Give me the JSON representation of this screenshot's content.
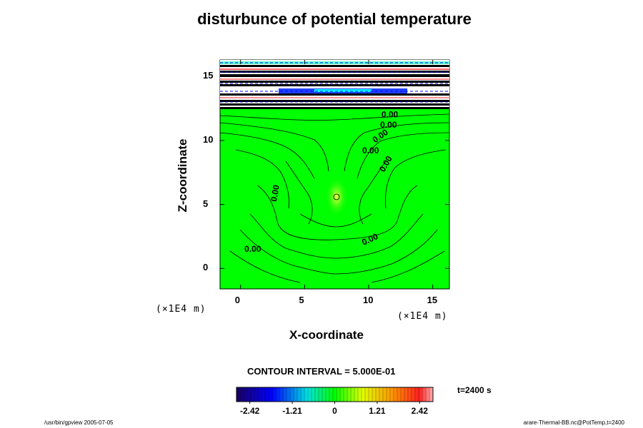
{
  "title": "disturbunce of potential temperature",
  "chart_data": {
    "type": "heatmap",
    "title": "disturbunce of potential temperature",
    "xlabel": "X-coordinate",
    "ylabel": "Z-coordinate",
    "x_unit": "(×1E4 m)",
    "y_unit": "(×1E4 m)",
    "xlim": [
      -1.6,
      16.3
    ],
    "ylim": [
      -1.6,
      16.3
    ],
    "x_ticks": [
      0,
      5,
      10,
      15
    ],
    "y_ticks": [
      0,
      5,
      10,
      15
    ],
    "x_tick_labels": [
      "0",
      "5",
      "10",
      "15"
    ],
    "y_tick_labels": [
      "0",
      "5",
      "10",
      "15"
    ],
    "contour_interval": 0.5,
    "contour_labels": [
      {
        "text": "0.00",
        "x": 0.3,
        "z": 1.3,
        "angle": 0
      },
      {
        "text": "0.00",
        "x": 2.8,
        "z": 5.2,
        "angle": -80
      },
      {
        "text": "0.00",
        "x": 9.5,
        "z": 9.0,
        "angle": 0
      },
      {
        "text": "0.00",
        "x": 10.5,
        "z": 9.8,
        "angle": -35
      },
      {
        "text": "0.00",
        "x": 11.2,
        "z": 7.5,
        "angle": -60
      },
      {
        "text": "0.00",
        "x": 10.9,
        "z": 11.0,
        "angle": 0
      },
      {
        "text": "0.00",
        "x": 11.0,
        "z": 11.8,
        "angle": 0
      },
      {
        "text": "0.00",
        "x": 9.6,
        "z": 1.8,
        "angle": -25
      }
    ],
    "colorbar": {
      "min": -2.8,
      "max": 2.8,
      "ticks": [
        -2.42,
        -1.21,
        0,
        1.21,
        2.42
      ],
      "tick_labels": [
        "-2.42",
        "-1.21",
        "0",
        "1.21",
        "2.42"
      ]
    }
  },
  "contour_interval_label": "CONTOUR INTERVAL = 5.000E-01",
  "time_label": "t=2400 s",
  "footer_left": "/usr/bin/gpview 2005-07-05",
  "footer_right": "arare-Thermal-BB.nc@PotTemp,t=2400",
  "colors": {
    "background": "#00ff00",
    "warm": "#ff2020",
    "cool": "#1010ff",
    "contour": "#000000"
  }
}
